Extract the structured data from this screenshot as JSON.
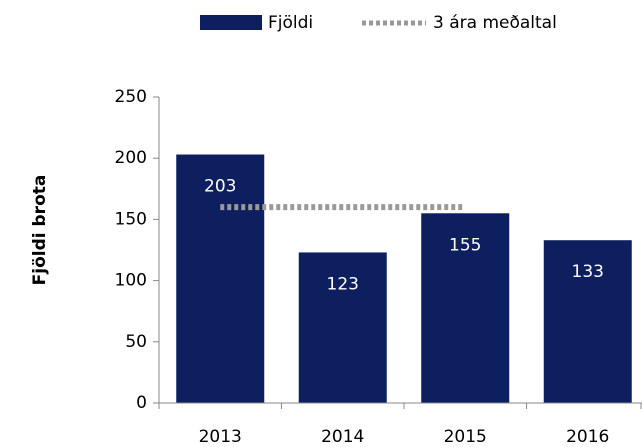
{
  "chart_data": {
    "type": "bar",
    "categories": [
      "2013",
      "2014",
      "2015",
      "2016"
    ],
    "series": [
      {
        "name": "Fjöldi",
        "color": "#0d1f5f",
        "values": [
          203,
          123,
          155,
          133
        ]
      },
      {
        "name": "3 ára meðaltal",
        "type": "line",
        "color": "#999999",
        "values": [
          160,
          160,
          160,
          null
        ]
      }
    ],
    "ylabel": "Fjöldi brota",
    "ylim": [
      0,
      250
    ],
    "yticks": [
      0,
      50,
      100,
      150,
      200,
      250
    ],
    "legend": "top"
  }
}
